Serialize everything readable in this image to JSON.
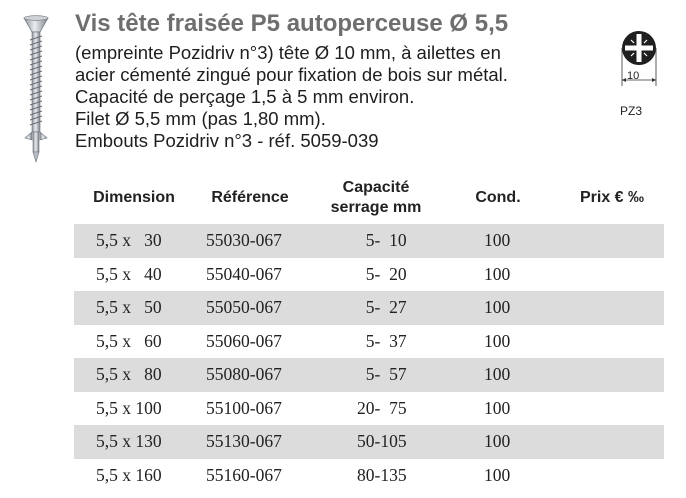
{
  "product": {
    "title": "Vis tête fraisée P5 autoperceuse Ø 5,5",
    "description_lines": [
      "(empreinte Pozidriv n°3) tête Ø 10 mm, à ailettes en",
      "acier cémenté zingué pour fixation de bois sur métal.",
      "Capacité de perçage 1,5 à 5 mm environ.",
      "Filet Ø 5,5 mm (pas 1,80 mm).",
      "Embouts Pozidriv n°3 - réf. 5059-039"
    ]
  },
  "drive_icon": {
    "name": "pozidriv-head-icon",
    "head_size": "10",
    "label": "PZ3"
  },
  "table": {
    "headers": [
      "Dimension",
      "Référence",
      "Capacité serrage mm",
      "Cond.",
      "Prix € ‰"
    ],
    "header_lines": {
      "capacity_line1": "Capacité",
      "capacity_line2": "serrage mm"
    },
    "rows": [
      {
        "dimension": "5,5 x   30",
        "reference": "55030-067",
        "capacity": "  5-  10",
        "cond": "100",
        "price": ""
      },
      {
        "dimension": "5,5 x   40",
        "reference": "55040-067",
        "capacity": "  5-  20",
        "cond": "100",
        "price": ""
      },
      {
        "dimension": "5,5 x   50",
        "reference": "55050-067",
        "capacity": "  5-  27",
        "cond": "100",
        "price": ""
      },
      {
        "dimension": "5,5 x   60",
        "reference": "55060-067",
        "capacity": "  5-  37",
        "cond": "100",
        "price": ""
      },
      {
        "dimension": "5,5 x   80",
        "reference": "55080-067",
        "capacity": "  5-  57",
        "cond": "100",
        "price": ""
      },
      {
        "dimension": "5,5 x 100",
        "reference": "55100-067",
        "capacity": "20-  75",
        "cond": "100",
        "price": ""
      },
      {
        "dimension": "5,5 x 130",
        "reference": "55130-067",
        "capacity": "50-105",
        "cond": "100",
        "price": ""
      },
      {
        "dimension": "5,5 x 160",
        "reference": "55160-067",
        "capacity": "80-135",
        "cond": "100",
        "price": ""
      }
    ]
  },
  "colors": {
    "title": "#6e6e6e",
    "row_shade": "#dcdcdc",
    "text": "#222222"
  }
}
